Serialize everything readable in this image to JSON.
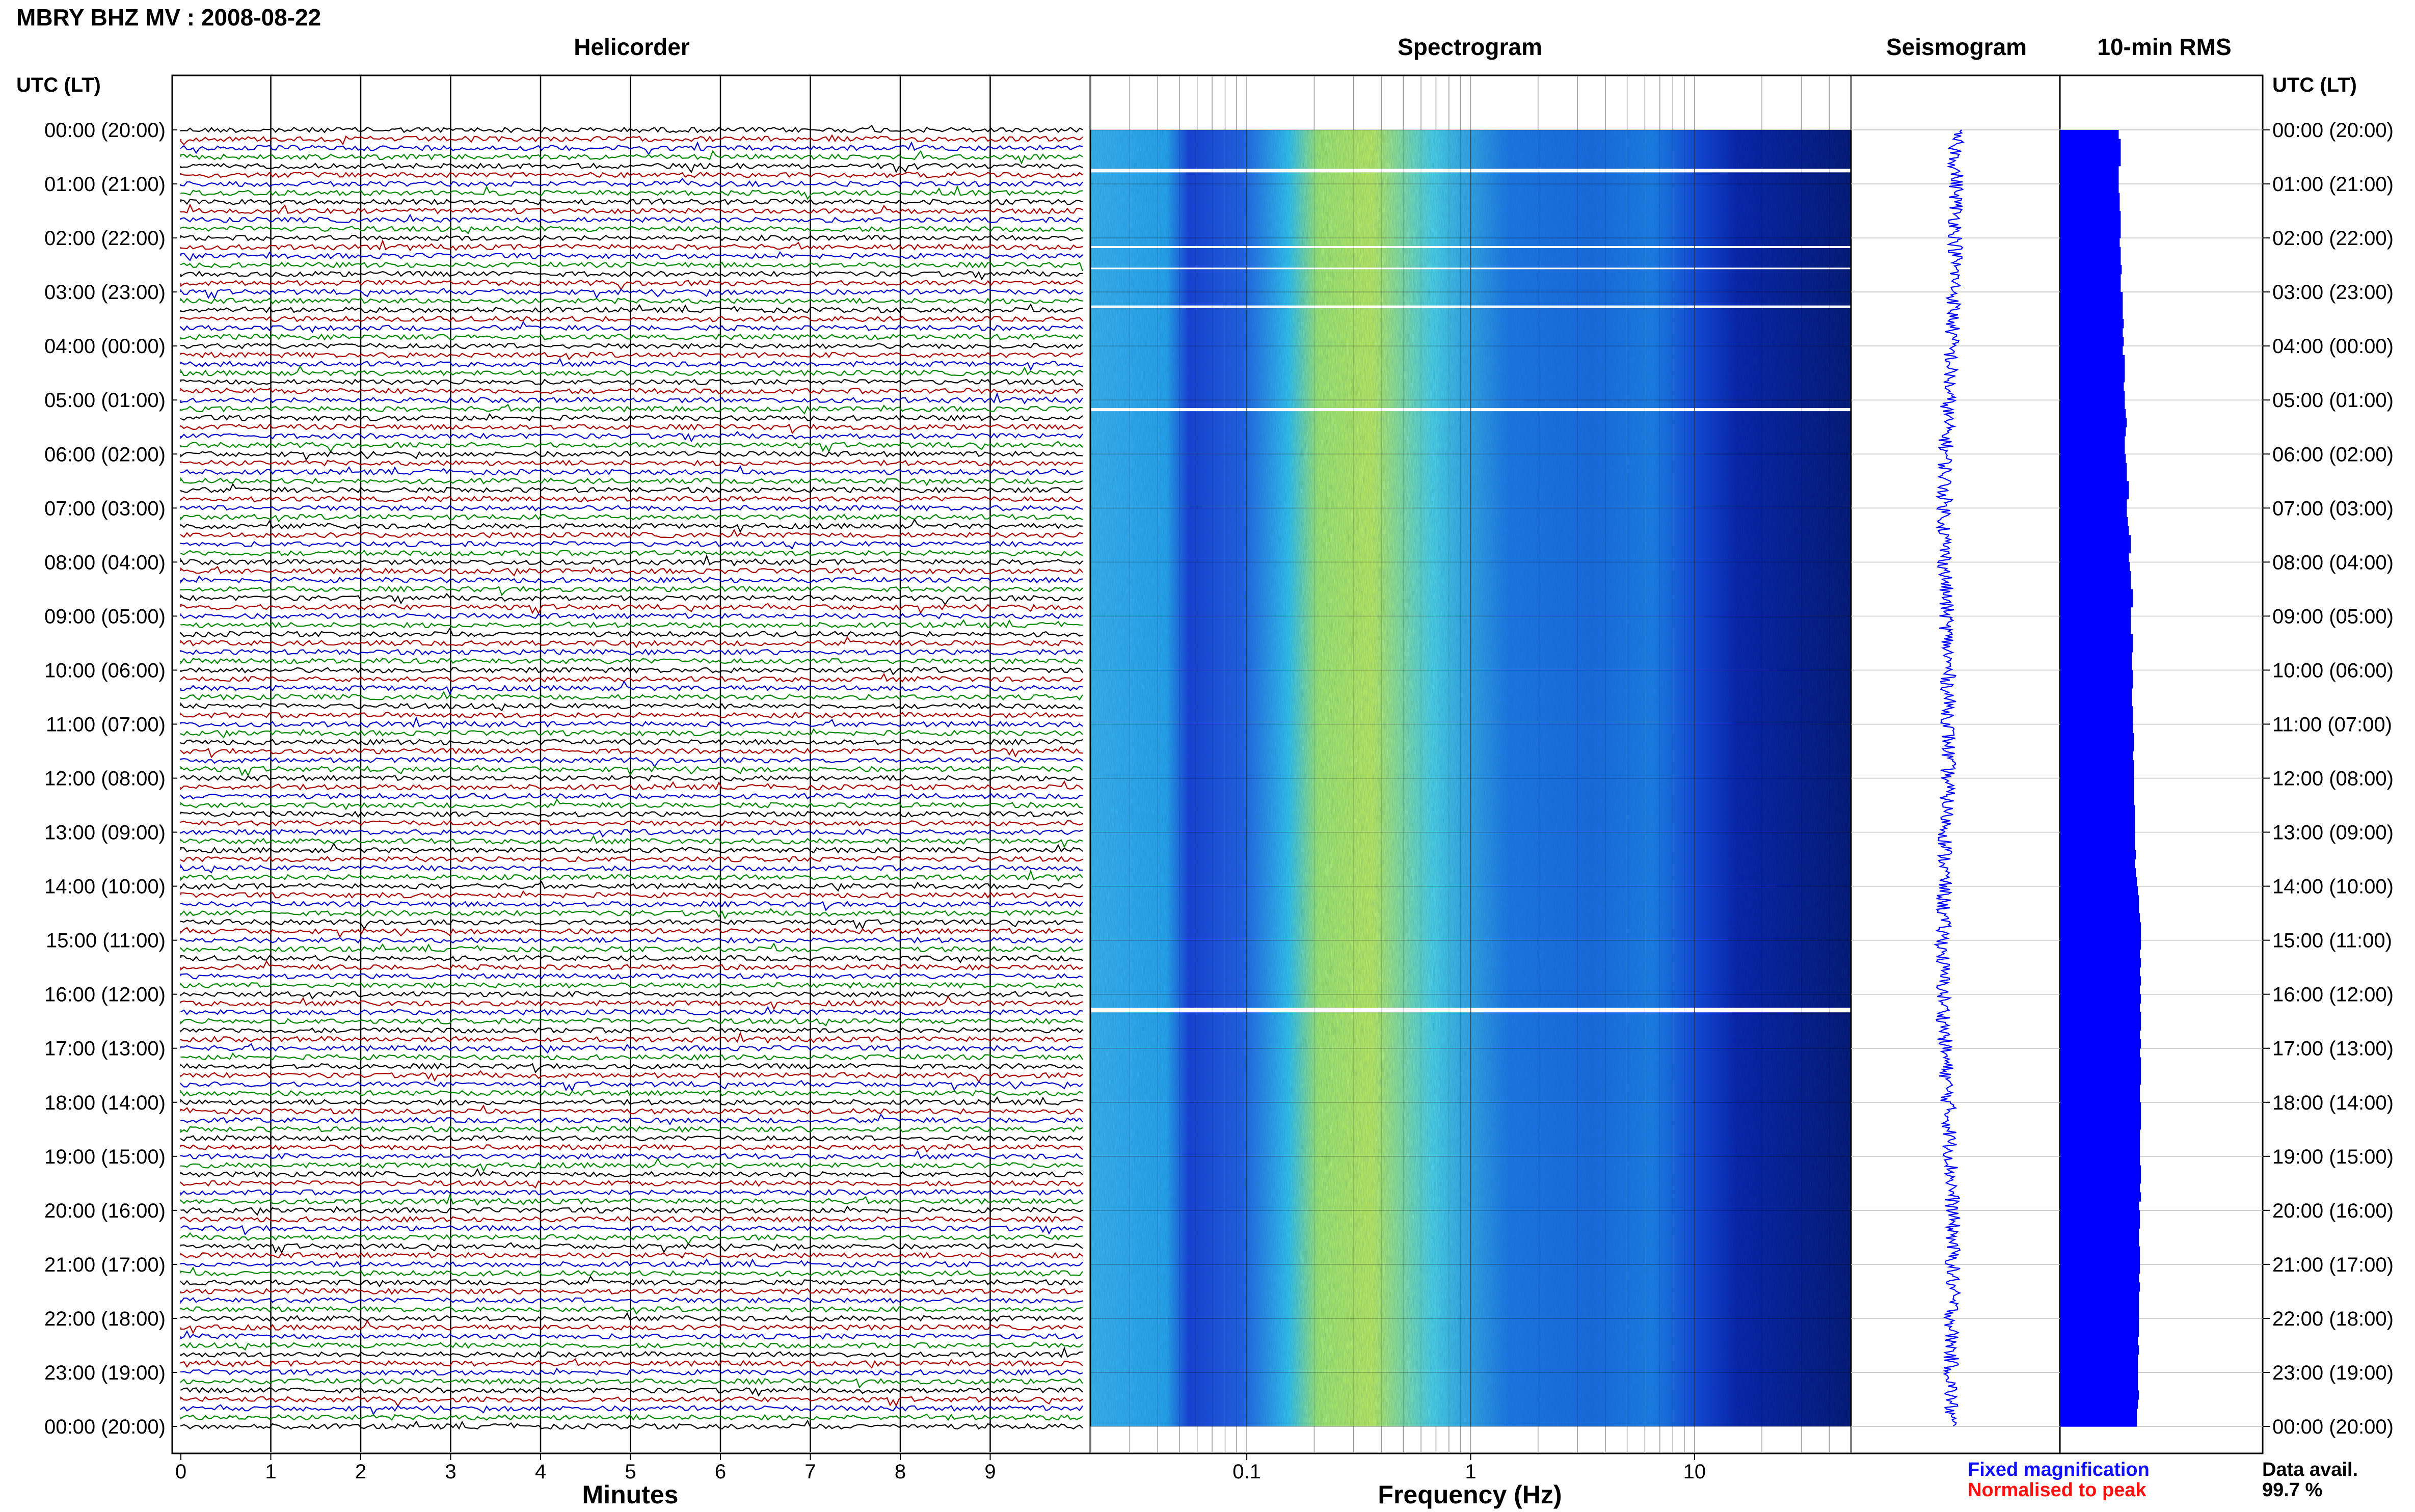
{
  "header": {
    "station_title": "MBRY BHZ MV : 2008-08-22",
    "utc_label_left": "UTC (LT)",
    "utc_label_right": "UTC (LT)"
  },
  "panels": {
    "helicorder": "Helicorder",
    "spectrogram": "Spectrogram",
    "seismogram": "Seismogram",
    "rms": "10-min RMS"
  },
  "axes": {
    "minutes_label": "Minutes",
    "frequency_label": "Frequency (Hz)",
    "minute_ticks": [
      "0",
      "1",
      "2",
      "3",
      "4",
      "5",
      "6",
      "7",
      "8",
      "9"
    ],
    "frequency_ticks": [
      "0.1",
      "1",
      "10"
    ]
  },
  "time_labels": [
    "00:00 (20:00)",
    "01:00 (21:00)",
    "02:00 (22:00)",
    "03:00 (23:00)",
    "04:00 (00:00)",
    "05:00 (01:00)",
    "06:00 (02:00)",
    "07:00 (03:00)",
    "08:00 (04:00)",
    "09:00 (05:00)",
    "10:00 (06:00)",
    "11:00 (07:00)",
    "12:00 (08:00)",
    "13:00 (09:00)",
    "14:00 (10:00)",
    "15:00 (11:00)",
    "16:00 (12:00)",
    "17:00 (13:00)",
    "18:00 (14:00)",
    "19:00 (15:00)",
    "20:00 (16:00)",
    "21:00 (17:00)",
    "22:00 (18:00)",
    "23:00 (19:00)",
    "00:00 (20:00)"
  ],
  "legend": {
    "fixed": "Fixed magnification",
    "normalised": "Normalised to peak",
    "fixed_color": "#1010ff",
    "normalised_color": "#ff1010"
  },
  "availability": {
    "label": "Data avail.",
    "value": "99.7 %"
  },
  "colors": {
    "trace_cycle": [
      "#000000",
      "#aa0000",
      "#0000cc",
      "#008800"
    ],
    "rms_bar": "#0000ff",
    "seismogram": "#0000ff"
  },
  "chart_data": {
    "type": "heatmap",
    "helicorder": {
      "traces_per_hour": 6,
      "minutes_range": [
        0,
        10
      ],
      "hours_range": [
        0,
        24
      ]
    },
    "spectrogram": {
      "frequency_range_hz": [
        0.02,
        50
      ],
      "x_scale": "log"
    },
    "rms_10min": {
      "values": [
        0.58,
        0.6,
        0.6,
        0.6,
        0.58,
        0.58,
        0.58,
        0.59,
        0.59,
        0.6,
        0.6,
        0.6,
        0.59,
        0.6,
        0.6,
        0.61,
        0.6,
        0.6,
        0.62,
        0.62,
        0.62,
        0.63,
        0.62,
        0.63,
        0.62,
        0.64,
        0.64,
        0.64,
        0.63,
        0.64,
        0.64,
        0.65,
        0.66,
        0.65,
        0.64,
        0.64,
        0.65,
        0.66,
        0.66,
        0.68,
        0.68,
        0.66,
        0.66,
        0.67,
        0.68,
        0.7,
        0.7,
        0.68,
        0.69,
        0.7,
        0.7,
        0.72,
        0.72,
        0.7,
        0.7,
        0.7,
        0.72,
        0.72,
        0.71,
        0.71,
        0.72,
        0.72,
        0.71,
        0.71,
        0.72,
        0.72,
        0.72,
        0.73,
        0.73,
        0.72,
        0.73,
        0.73,
        0.73,
        0.73,
        0.73,
        0.74,
        0.74,
        0.74,
        0.74,
        0.74,
        0.75,
        0.74,
        0.75,
        0.76,
        0.77,
        0.78,
        0.78,
        0.79,
        0.8,
        0.8,
        0.8,
        0.79,
        0.8,
        0.79,
        0.8,
        0.79,
        0.8,
        0.79,
        0.8,
        0.8,
        0.79,
        0.8,
        0.79,
        0.8,
        0.8,
        0.8,
        0.79,
        0.79,
        0.8,
        0.8,
        0.8,
        0.79,
        0.79,
        0.79,
        0.79,
        0.8,
        0.8,
        0.79,
        0.8,
        0.78,
        0.79,
        0.79,
        0.78,
        0.78,
        0.79,
        0.79,
        0.79,
        0.78,
        0.79,
        0.78,
        0.78,
        0.78,
        0.78,
        0.78,
        0.77,
        0.78,
        0.77,
        0.77,
        0.77,
        0.77,
        0.78,
        0.77,
        0.76,
        0.76
      ]
    }
  }
}
